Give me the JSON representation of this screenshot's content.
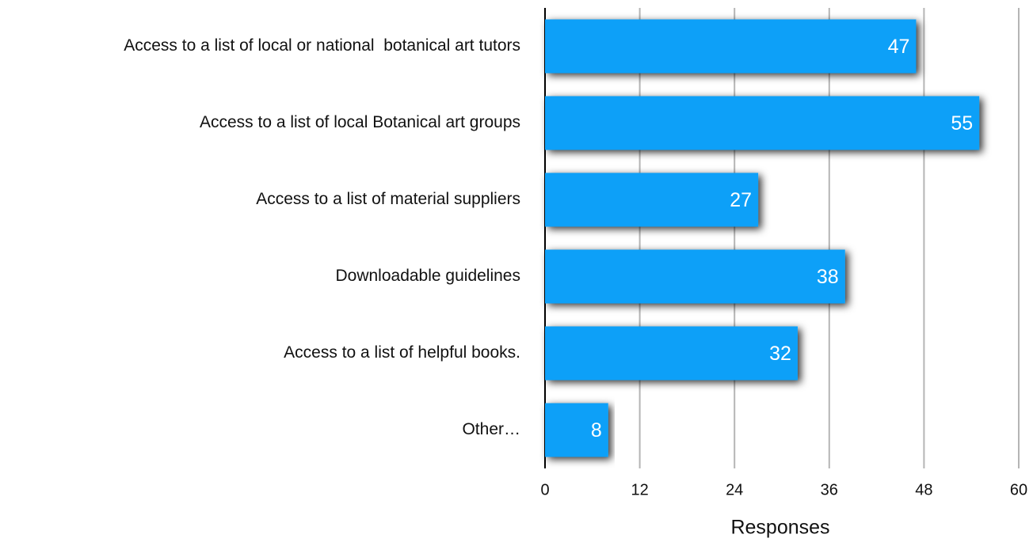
{
  "chart_data": {
    "type": "bar",
    "horizontal": true,
    "categories": [
      "Access to a list of local or national  botanical art tutors",
      "Access to a list of local Botanical art groups",
      "Access to a list of material suppliers",
      "Downloadable guidelines",
      "Access to a list of helpful books.",
      "Other…"
    ],
    "values": [
      47,
      55,
      27,
      38,
      32,
      8
    ],
    "color": "#0aa0f8",
    "x_label": "Responses",
    "xlim": [
      0,
      60
    ],
    "xticks": [
      0,
      12,
      24,
      36,
      48,
      60
    ],
    "grid": true
  }
}
